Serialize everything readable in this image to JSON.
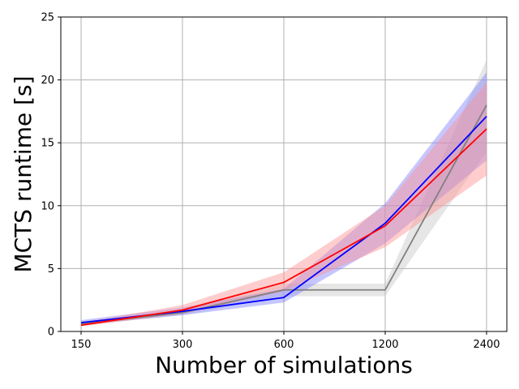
{
  "chart_data": {
    "type": "line",
    "title": "",
    "xlabel": "Number of simulations",
    "ylabel": "MCTS runtime [s]",
    "categories": [
      "150",
      "300",
      "600",
      "1200",
      "2400"
    ],
    "ylim": [
      0,
      25
    ],
    "yticks": [
      "0",
      "5",
      "10",
      "15",
      "20",
      "25"
    ],
    "grid": true,
    "legend": "none",
    "series": [
      {
        "color": "#808080",
        "band_color": "#c8c8c8",
        "values": [
          0.6,
          1.5,
          3.3,
          3.3,
          18.0
        ],
        "lower": [
          0.5,
          1.3,
          2.8,
          2.8,
          14.3
        ],
        "upper": [
          0.8,
          1.7,
          3.8,
          3.8,
          21.6
        ]
      },
      {
        "color": "#0000ff",
        "band_color": "#8080ff",
        "values": [
          0.7,
          1.6,
          2.7,
          8.6,
          17.1
        ],
        "lower": [
          0.5,
          1.3,
          2.3,
          7.0,
          13.6
        ],
        "upper": [
          0.9,
          1.9,
          3.4,
          10.2,
          20.6
        ]
      },
      {
        "color": "#ff0000",
        "band_color": "#ff9090",
        "values": [
          0.5,
          1.7,
          3.9,
          8.4,
          16.1
        ],
        "lower": [
          0.4,
          1.4,
          3.2,
          6.7,
          12.4
        ],
        "upper": [
          0.7,
          2.1,
          4.7,
          10.0,
          19.8
        ]
      }
    ]
  }
}
